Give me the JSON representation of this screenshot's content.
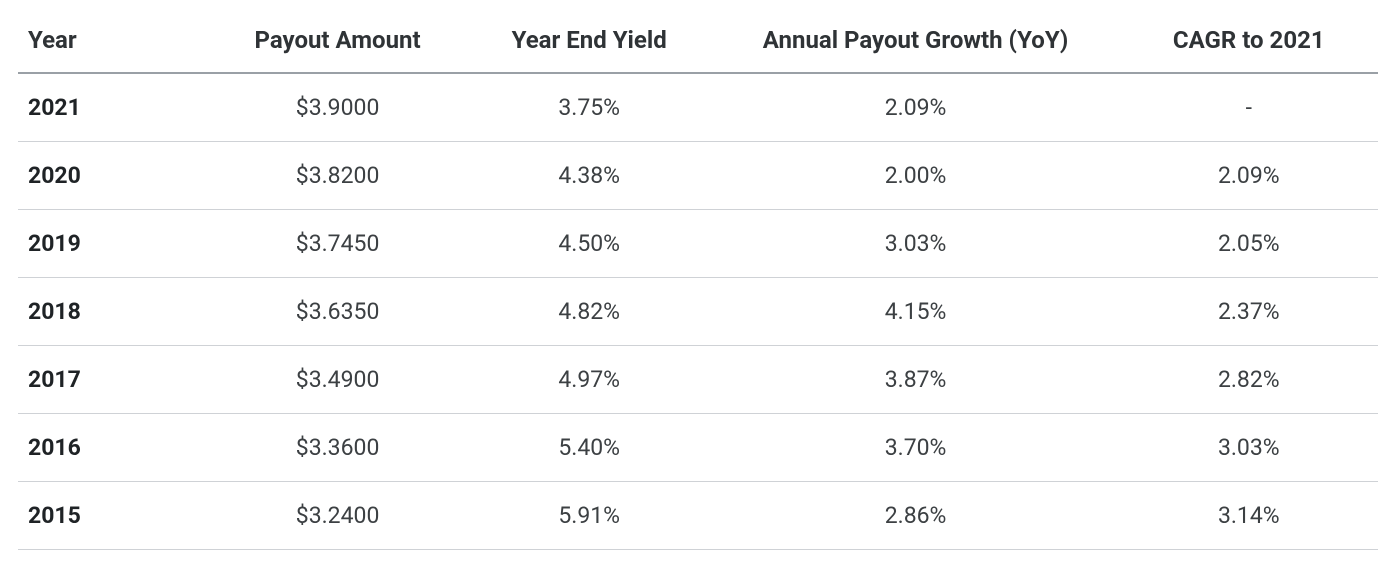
{
  "table": {
    "type": "table",
    "background_color": "#ffffff",
    "header_border_color": "#9aa0a6",
    "row_border_color": "#cfd2d6",
    "header_font_size_pt": 18,
    "header_font_weight": 700,
    "header_text_color": "#2f3336",
    "cell_font_size_pt": 17,
    "cell_text_color": "#3c4043",
    "year_cell_font_weight": 700,
    "columns": [
      {
        "key": "year",
        "label": "Year",
        "align": "left",
        "width_pct": 14
      },
      {
        "key": "payout",
        "label": "Payout Amount",
        "align": "center",
        "width_pct": 19
      },
      {
        "key": "yield",
        "label": "Year End Yield",
        "align": "center",
        "width_pct": 18
      },
      {
        "key": "growth",
        "label": "Annual Payout Growth (YoY)",
        "align": "center",
        "width_pct": 30
      },
      {
        "key": "cagr",
        "label": "CAGR to 2021",
        "align": "center",
        "width_pct": 19
      }
    ],
    "rows": [
      {
        "year": "2021",
        "payout": "$3.9000",
        "yield": "3.75%",
        "growth": "2.09%",
        "cagr": "-"
      },
      {
        "year": "2020",
        "payout": "$3.8200",
        "yield": "4.38%",
        "growth": "2.00%",
        "cagr": "2.09%"
      },
      {
        "year": "2019",
        "payout": "$3.7450",
        "yield": "4.50%",
        "growth": "3.03%",
        "cagr": "2.05%"
      },
      {
        "year": "2018",
        "payout": "$3.6350",
        "yield": "4.82%",
        "growth": "4.15%",
        "cagr": "2.37%"
      },
      {
        "year": "2017",
        "payout": "$3.4900",
        "yield": "4.97%",
        "growth": "3.87%",
        "cagr": "2.82%"
      },
      {
        "year": "2016",
        "payout": "$3.3600",
        "yield": "5.40%",
        "growth": "3.70%",
        "cagr": "3.03%"
      },
      {
        "year": "2015",
        "payout": "$3.2400",
        "yield": "5.91%",
        "growth": "2.86%",
        "cagr": "3.14%"
      }
    ]
  }
}
